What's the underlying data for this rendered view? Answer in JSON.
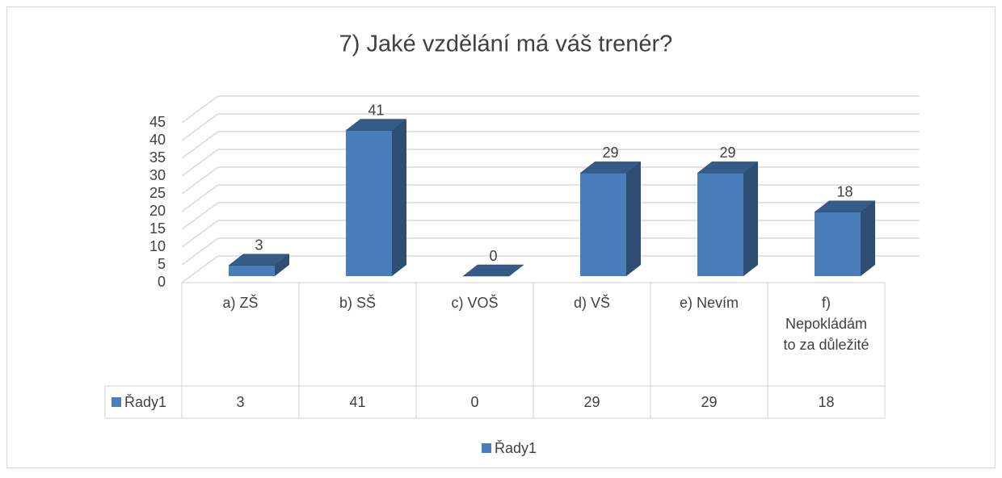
{
  "chart_data": {
    "type": "bar3d",
    "title": "7) Jaké vzdělání má váš trenér?",
    "categories": [
      "a) ZŠ",
      "b) SŠ",
      "c) VOŠ",
      "d) VŠ",
      "e) Nevím",
      "f) Nepokládám to za důležité"
    ],
    "series": [
      {
        "name": "Řady1",
        "color": "#4a7ebb",
        "values": [
          3,
          41,
          0,
          29,
          29,
          18
        ]
      }
    ],
    "ylim": [
      0,
      45
    ],
    "yticks": [
      0,
      5,
      10,
      15,
      20,
      25,
      30,
      35,
      40,
      45
    ],
    "grid": true,
    "data_table": true,
    "legend": "bottom"
  }
}
